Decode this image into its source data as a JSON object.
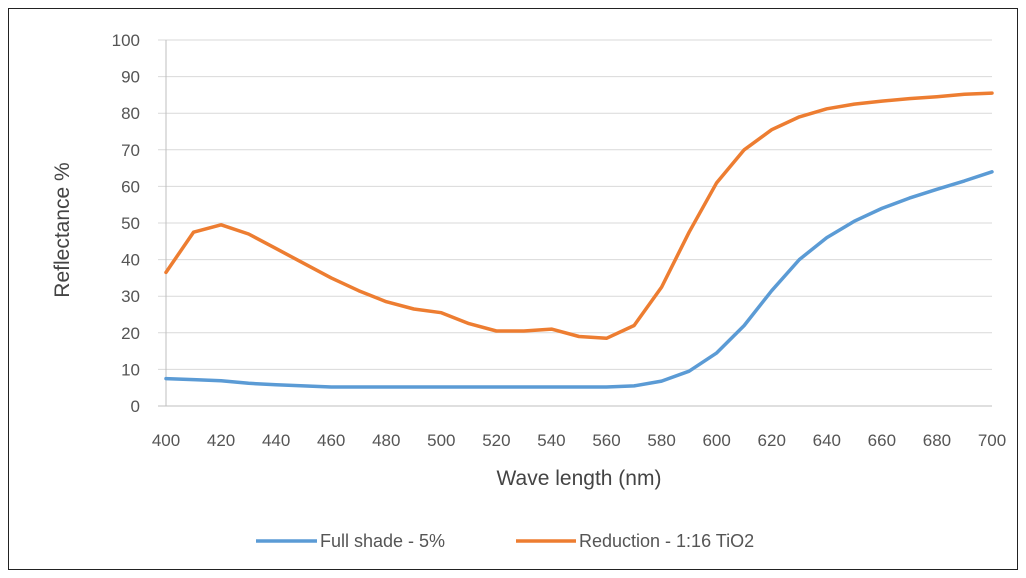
{
  "chart_data": {
    "type": "line",
    "title": "",
    "xlabel": "Wave length (nm)",
    "ylabel": "Reflectance %",
    "xlim": [
      400,
      700
    ],
    "ylim": [
      0,
      100
    ],
    "x_ticks": [
      "400",
      "420",
      "440",
      "460",
      "480",
      "500",
      "520",
      "540",
      "560",
      "580",
      "600",
      "620",
      "640",
      "660",
      "680",
      "700"
    ],
    "y_ticks": [
      "0",
      "10",
      "20",
      "30",
      "40",
      "50",
      "60",
      "70",
      "80",
      "90",
      "100"
    ],
    "grid": "horizontal",
    "legend": "bottom",
    "x": [
      400,
      410,
      420,
      430,
      440,
      450,
      460,
      470,
      480,
      490,
      500,
      510,
      520,
      530,
      540,
      550,
      560,
      570,
      580,
      590,
      600,
      610,
      620,
      630,
      640,
      650,
      660,
      670,
      680,
      690,
      700
    ],
    "series": [
      {
        "name": "Full shade - 5%",
        "color": "#5b9bd5",
        "values": [
          7.5,
          7.2,
          6.9,
          6.2,
          5.8,
          5.5,
          5.2,
          5.2,
          5.2,
          5.2,
          5.2,
          5.2,
          5.2,
          5.2,
          5.2,
          5.2,
          5.2,
          5.5,
          6.8,
          9.5,
          14.5,
          22,
          31.5,
          40,
          46,
          50.5,
          54,
          56.8,
          59.2,
          61.5,
          64
        ]
      },
      {
        "name": "Reduction - 1:16 TiO2",
        "color": "#ed7d31",
        "values": [
          36.5,
          47.5,
          49.5,
          47,
          43,
          39,
          35,
          31.5,
          28.5,
          26.5,
          25.5,
          22.5,
          20.5,
          20.5,
          21,
          19,
          18.5,
          22,
          32.5,
          47.5,
          61,
          70,
          75.5,
          79,
          81.2,
          82.5,
          83.3,
          84,
          84.5,
          85.2,
          85.5
        ]
      }
    ]
  }
}
